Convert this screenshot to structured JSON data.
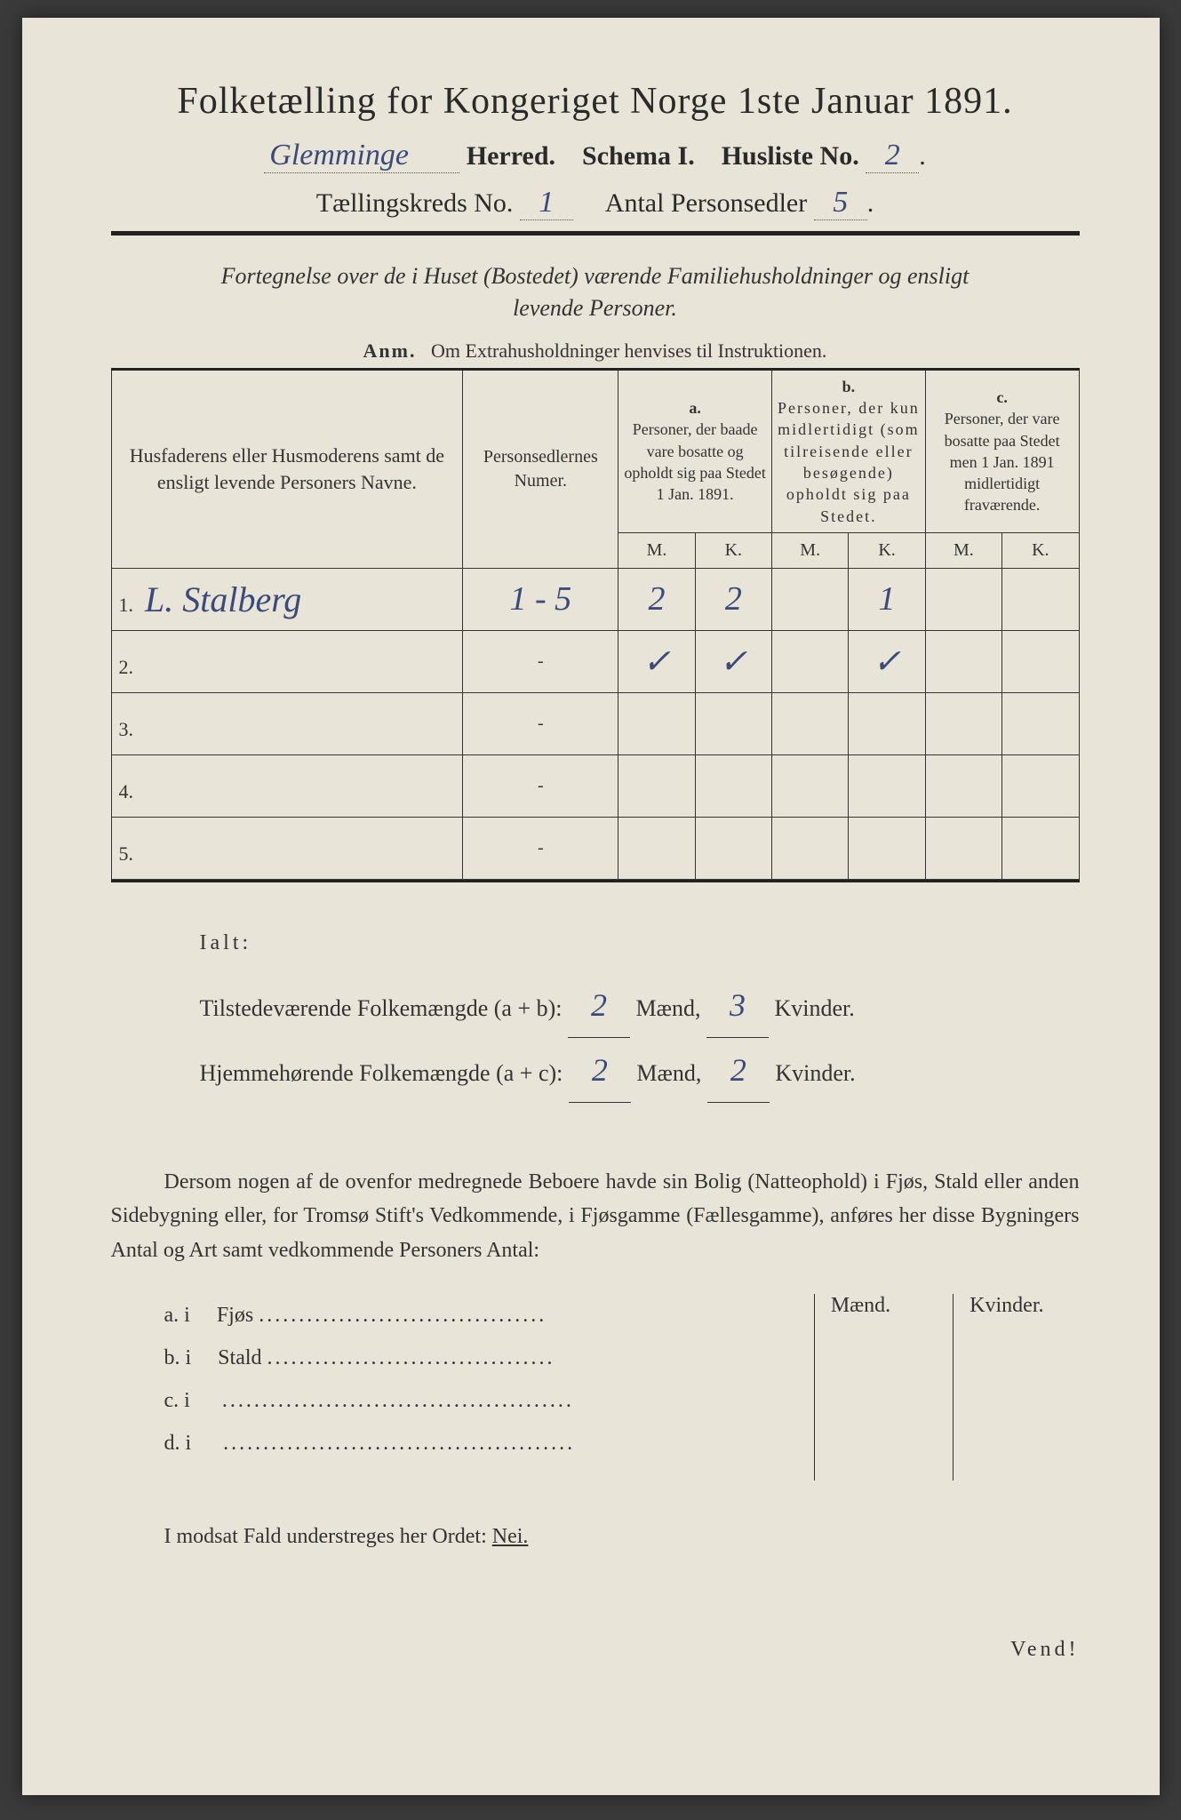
{
  "header": {
    "title": "Folketælling for Kongeriget Norge 1ste Januar 1891.",
    "herred_hw": "Glemminge",
    "herred_label": "Herred.",
    "schema_label": "Schema I.",
    "husliste_label": "Husliste No.",
    "husliste_no": "2",
    "kreds_label": "Tællingskreds No.",
    "kreds_no": "1",
    "antal_label": "Antal Personsedler",
    "antal_no": "5"
  },
  "desc": {
    "line1": "Fortegnelse over de i Huset (Bostedet) værende Familiehusholdninger og ensligt",
    "line2": "levende Personer.",
    "anm_label": "Anm.",
    "anm_text": "Om Extrahusholdninger henvises til Instruktionen."
  },
  "table": {
    "head": {
      "names": "Husfaderens eller Husmoderens samt de ensligt levende Personers Navne.",
      "num": "Personsedlernes Numer.",
      "a_label": "a.",
      "a_text": "Personer, der baade vare bosatte og opholdt sig paa Stedet 1 Jan. 1891.",
      "b_label": "b.",
      "b_text": "Personer, der kun midlertidigt (som tilreisende eller besøgende) opholdt sig paa Stedet.",
      "c_label": "c.",
      "c_text": "Personer, der vare bosatte paa Stedet men 1 Jan. 1891 midlertidigt fraværende.",
      "m": "M.",
      "k": "K."
    },
    "rows": [
      {
        "n": "1.",
        "name": "L. Stalberg",
        "num": "1 - 5",
        "am": "2",
        "ak": "2",
        "bm": "",
        "bk": "1",
        "cm": "",
        "ck": ""
      },
      {
        "n": "2.",
        "name": "",
        "num": "-",
        "am": "✓",
        "ak": "✓",
        "bm": "",
        "bk": "✓",
        "cm": "",
        "ck": ""
      },
      {
        "n": "3.",
        "name": "",
        "num": "-",
        "am": "",
        "ak": "",
        "bm": "",
        "bk": "",
        "cm": "",
        "ck": ""
      },
      {
        "n": "4.",
        "name": "",
        "num": "-",
        "am": "",
        "ak": "",
        "bm": "",
        "bk": "",
        "cm": "",
        "ck": ""
      },
      {
        "n": "5.",
        "name": "",
        "num": "-",
        "am": "",
        "ak": "",
        "bm": "",
        "bk": "",
        "cm": "",
        "ck": ""
      }
    ]
  },
  "totals": {
    "ialt": "Ialt:",
    "present_label": "Tilstedeværende Folkemængde (a + b):",
    "resident_label": "Hjemmehørende Folkemængde (a + c):",
    "maend": "Mænd,",
    "kvinder": "Kvinder.",
    "present_m": "2",
    "present_k": "3",
    "resident_m": "2",
    "resident_k": "2"
  },
  "para": "Dersom nogen af de ovenfor medregnede Beboere havde sin Bolig (Natteophold) i Fjøs, Stald eller anden Sidebygning eller, for Tromsø Stift's Vedkommende, i Fjøsgamme (Fællesgamme), anføres her disse Bygningers Antal og Art samt vedkommende Personers Antal:",
  "outhouse": {
    "m": "Mænd.",
    "k": "Kvinder.",
    "items": [
      {
        "label": "a. i",
        "name": "Fjøs"
      },
      {
        "label": "b. i",
        "name": "Stald"
      },
      {
        "label": "c. i",
        "name": ""
      },
      {
        "label": "d. i",
        "name": ""
      }
    ]
  },
  "nei": {
    "text": "I modsat Fald understreges her Ordet:",
    "word": "Nei."
  },
  "vend": "Vend!",
  "colors": {
    "paper": "#e8e4d8",
    "ink": "#2a2a2a",
    "handwriting": "#3a4a7a",
    "rule": "#222222"
  }
}
